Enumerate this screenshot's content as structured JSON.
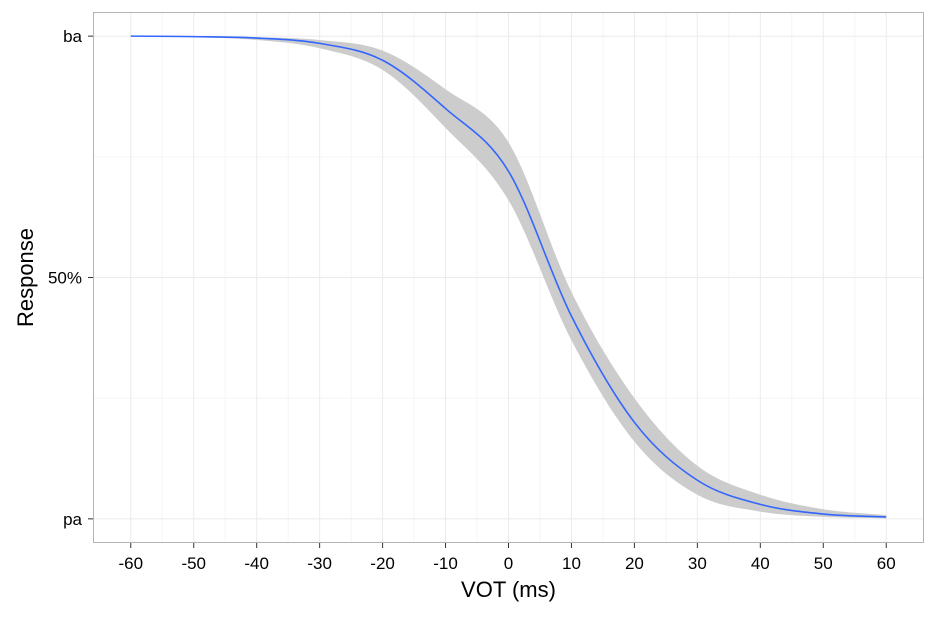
{
  "chart_data": {
    "type": "line",
    "xlabel": "VOT (ms)",
    "ylabel": "Response",
    "x_ticks": [
      -60,
      -50,
      -40,
      -30,
      -20,
      -10,
      0,
      10,
      20,
      30,
      40,
      50,
      60
    ],
    "x_tick_labels": [
      "-60",
      "-50",
      "-40",
      "-30",
      "-20",
      "-10",
      "0",
      "10",
      "20",
      "30",
      "40",
      "50",
      "60"
    ],
    "y_ticks": [
      0,
      0.5,
      1
    ],
    "y_tick_labels": [
      "pa",
      "50%",
      "ba"
    ],
    "xlim": [
      -66,
      66
    ],
    "ylim": [
      -0.05,
      1.05
    ],
    "grid": true,
    "series": [
      {
        "x": [
          -60,
          -50,
          -40,
          -30,
          -20,
          -10,
          0,
          10,
          20,
          30,
          40,
          50,
          60
        ],
        "y": [
          1.0,
          0.999,
          0.996,
          0.985,
          0.95,
          0.85,
          0.72,
          0.42,
          0.2,
          0.08,
          0.03,
          0.01,
          0.004
        ],
        "ci_lower": [
          1.0,
          0.998,
          0.992,
          0.975,
          0.93,
          0.81,
          0.66,
          0.37,
          0.16,
          0.05,
          0.015,
          0.004,
          0.001
        ],
        "ci_upper": [
          1.0,
          1.0,
          0.998,
          0.992,
          0.97,
          0.89,
          0.78,
          0.47,
          0.25,
          0.11,
          0.05,
          0.02,
          0.008
        ],
        "color": "#3366ff",
        "ribbon_color": "#cccccc"
      }
    ]
  }
}
